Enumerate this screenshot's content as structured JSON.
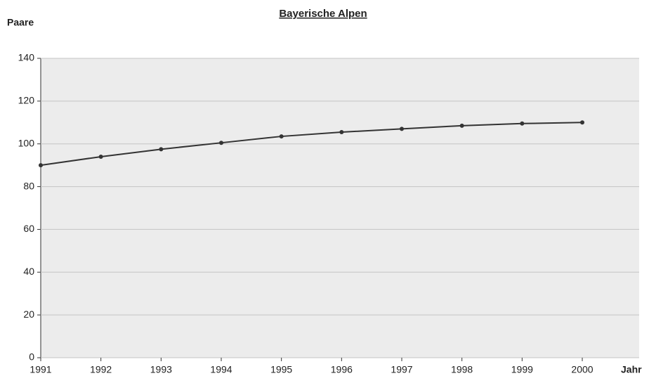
{
  "chart_data": {
    "type": "line",
    "title": "Bayerische Alpen",
    "y_label": "Paare",
    "x_label": "Jahr",
    "categories": [
      "1991",
      "1992",
      "1993",
      "1994",
      "1995",
      "1996",
      "1997",
      "1998",
      "1999",
      "2000"
    ],
    "values": [
      90,
      94,
      97.5,
      100.5,
      103.5,
      105.5,
      107,
      108.5,
      109.5,
      110
    ],
    "color": "#333333",
    "ylim": [
      0,
      140
    ],
    "yticks": [
      0,
      20,
      40,
      60,
      80,
      100,
      120,
      140
    ],
    "grid": true
  }
}
